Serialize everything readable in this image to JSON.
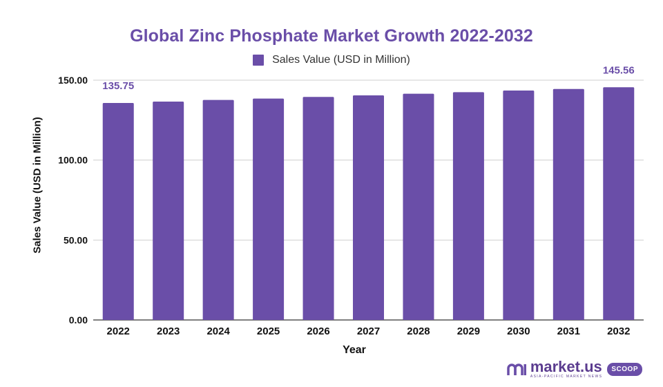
{
  "chart_data": {
    "type": "bar",
    "title": "Global Zinc Phosphate Market Growth 2022-2032",
    "xlabel": "Year",
    "ylabel": "Sales Value (USD in Million)",
    "legend": {
      "position": "top",
      "label": "Sales Value (USD in Million)"
    },
    "categories": [
      "2022",
      "2023",
      "2024",
      "2025",
      "2026",
      "2027",
      "2028",
      "2029",
      "2030",
      "2031",
      "2032"
    ],
    "series": [
      {
        "name": "Sales Value (USD in Million)",
        "values": [
          135.75,
          136.6,
          137.6,
          138.5,
          139.5,
          140.5,
          141.5,
          142.5,
          143.5,
          144.5,
          145.56
        ],
        "color": "#6a4ea8"
      }
    ],
    "data_labels": [
      {
        "index": 0,
        "text": "135.75"
      },
      {
        "index": 10,
        "text": "145.56"
      }
    ],
    "yticks": [
      "0.00",
      "50.00",
      "100.00",
      "150.00"
    ],
    "ylim": [
      0,
      150
    ],
    "grid": true
  },
  "brand": {
    "name": "market.us",
    "subtitle": "ASIA-PACIFIC MARKET NEWS",
    "badge": "SCOOP"
  },
  "colors": {
    "accent": "#6a4ea8",
    "grid": "#cfcfcf"
  }
}
